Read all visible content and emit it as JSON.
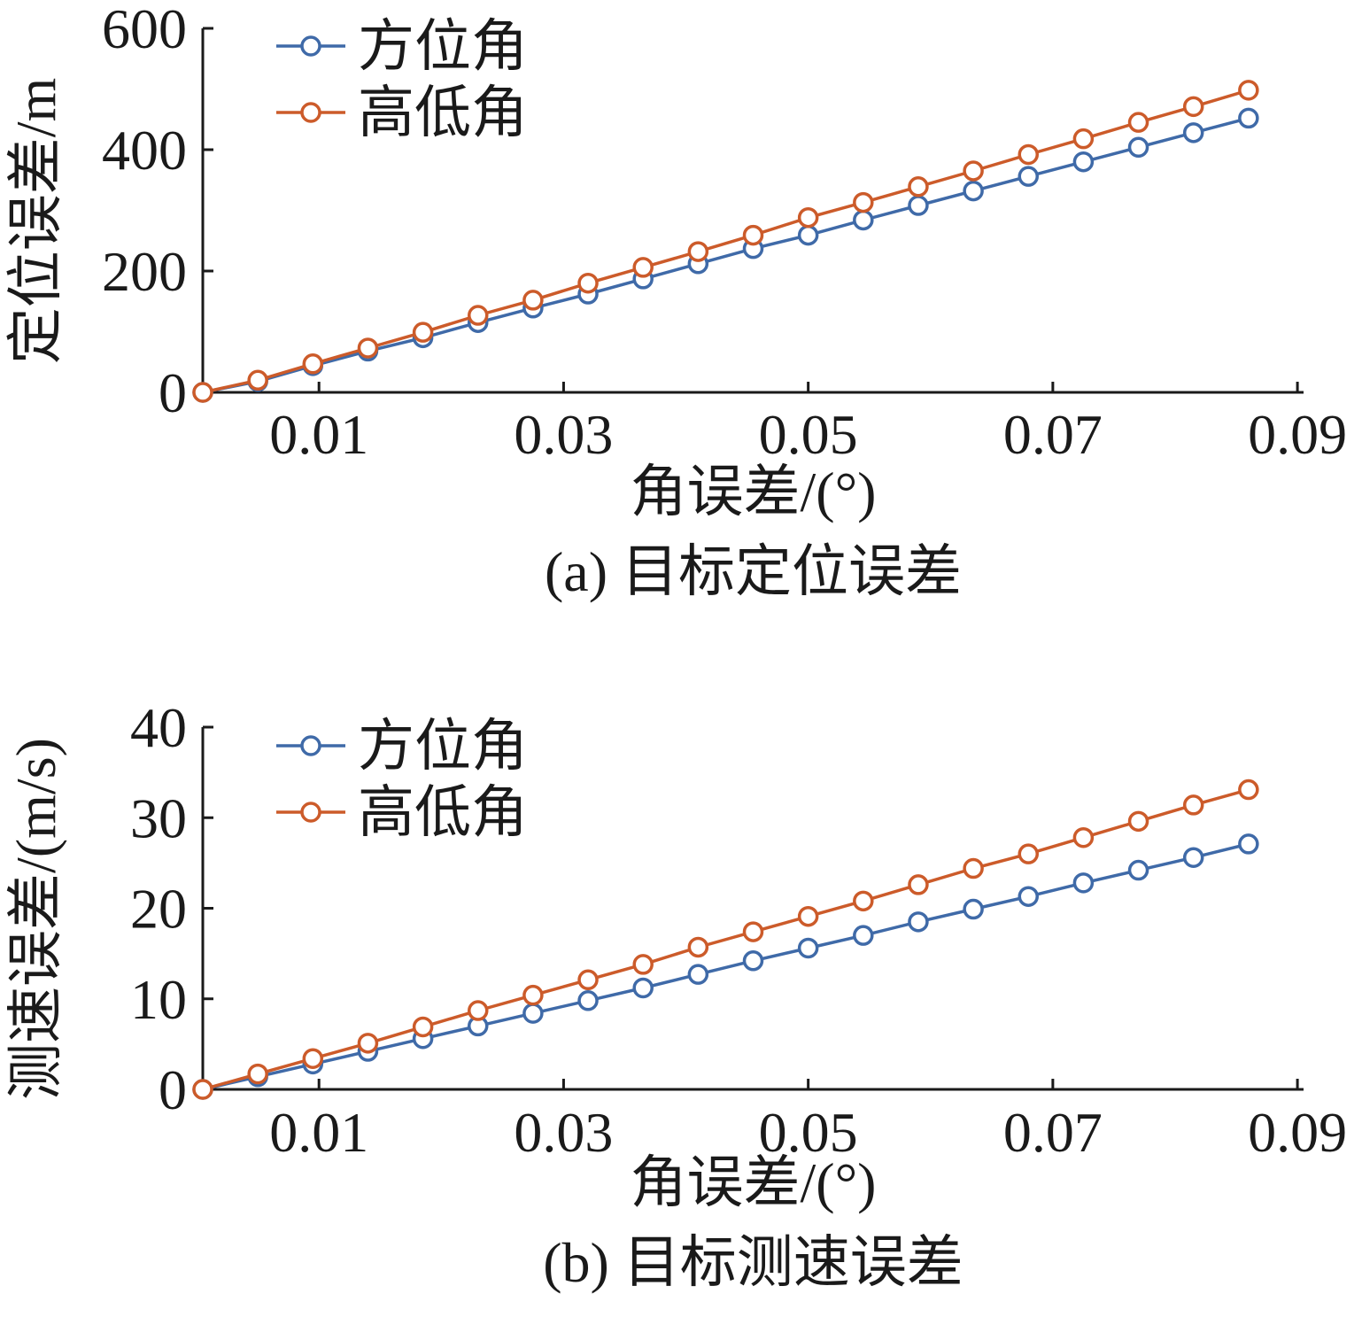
{
  "chart_data": [
    {
      "type": "line",
      "caption": "(a) 目标定位误差",
      "xlabel": "角误差/(°)",
      "ylabel": "定位误差/m",
      "xlim": [
        0.0005,
        0.0905
      ],
      "ylim": [
        0,
        600
      ],
      "xticks": [
        0.01,
        0.03,
        0.05,
        0.07,
        0.09
      ],
      "xtick_labels": [
        "0.01",
        "0.03",
        "0.05",
        "0.07",
        "0.09"
      ],
      "yticks": [
        0,
        200,
        400,
        600
      ],
      "ytick_labels": [
        "0",
        "200",
        "400",
        "600"
      ],
      "legend_position": "top-left",
      "x": [
        0.0005,
        0.005,
        0.0095,
        0.014,
        0.0185,
        0.023,
        0.0275,
        0.032,
        0.0365,
        0.041,
        0.0455,
        0.05,
        0.0545,
        0.059,
        0.0635,
        0.068,
        0.0725,
        0.077,
        0.0815,
        0.086
      ],
      "series": [
        {
          "name": "方位角",
          "color": "#3f6aa8",
          "values": [
            0,
            18,
            44,
            68,
            90,
            115,
            139,
            162,
            187,
            212,
            237,
            259,
            284,
            308,
            332,
            356,
            380,
            404,
            428,
            452
          ]
        },
        {
          "name": "高低角",
          "color": "#cc5b2a",
          "values": [
            0,
            20,
            47,
            73,
            99,
            127,
            152,
            180,
            206,
            232,
            259,
            288,
            313,
            339,
            365,
            392,
            418,
            445,
            471,
            498
          ]
        }
      ]
    },
    {
      "type": "line",
      "caption": "(b) 目标测速误差",
      "xlabel": "角误差/(°)",
      "ylabel": "测速误差/(m/s)",
      "xlim": [
        0.0005,
        0.0905
      ],
      "ylim": [
        0,
        40
      ],
      "xticks": [
        0.01,
        0.03,
        0.05,
        0.07,
        0.09
      ],
      "xtick_labels": [
        "0.01",
        "0.03",
        "0.05",
        "0.07",
        "0.09"
      ],
      "yticks": [
        0,
        10,
        20,
        30,
        40
      ],
      "ytick_labels": [
        "0",
        "10",
        "20",
        "30",
        "40"
      ],
      "legend_position": "top-left",
      "x": [
        0.0005,
        0.005,
        0.0095,
        0.014,
        0.0185,
        0.023,
        0.0275,
        0.032,
        0.0365,
        0.041,
        0.0455,
        0.05,
        0.0545,
        0.059,
        0.0635,
        0.068,
        0.0725,
        0.077,
        0.0815,
        0.086
      ],
      "series": [
        {
          "name": "方位角",
          "color": "#3f6aa8",
          "values": [
            0,
            1.4,
            2.8,
            4.2,
            5.6,
            7.0,
            8.4,
            9.8,
            11.2,
            12.7,
            14.2,
            15.6,
            17.0,
            18.5,
            19.9,
            21.3,
            22.8,
            24.2,
            25.6,
            27.1
          ]
        },
        {
          "name": "高低角",
          "color": "#cc5b2a",
          "values": [
            0,
            1.7,
            3.4,
            5.1,
            6.9,
            8.7,
            10.4,
            12.1,
            13.8,
            15.7,
            17.4,
            19.1,
            20.8,
            22.6,
            24.4,
            26.0,
            27.8,
            29.6,
            31.4,
            33.1
          ]
        }
      ]
    }
  ]
}
